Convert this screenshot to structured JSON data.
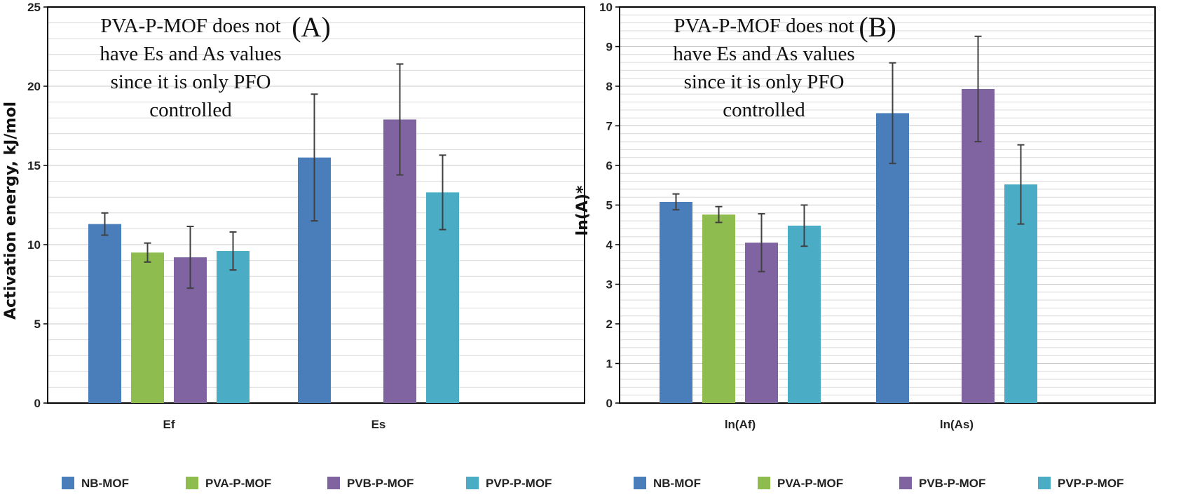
{
  "colors": {
    "NB-MOF": "#4a7ebb",
    "PVA-P-MOF": "#8fbc4f",
    "PVB-P-MOF": "#8064a2",
    "PVP-P-MOF": "#4bacc6",
    "errorbar": "#404040",
    "grid": "#d9d9d9"
  },
  "chart_data": [
    {
      "type": "bar",
      "panel_label": "(A)",
      "ylabel": "Activation energy, kJ/mol",
      "ylim": [
        0,
        25
      ],
      "ymajor": 5,
      "yminor": 1,
      "grid": true,
      "categories": [
        "Ef",
        "Es"
      ],
      "series": [
        {
          "name": "NB-MOF",
          "values": [
            11.3,
            15.5
          ],
          "errors": [
            0.7,
            4.0
          ]
        },
        {
          "name": "PVA-P-MOF",
          "values": [
            9.5,
            null
          ],
          "errors": [
            0.6,
            null
          ]
        },
        {
          "name": "PVB-P-MOF",
          "values": [
            9.2,
            17.9
          ],
          "errors": [
            1.95,
            3.5
          ]
        },
        {
          "name": "PVP-P-MOF",
          "values": [
            9.6,
            13.3
          ],
          "errors": [
            1.2,
            2.35
          ]
        }
      ],
      "annotation": [
        "PVA-P-MOF does not",
        "have Es and As values",
        "since it is only PFO",
        "controlled"
      ],
      "legend_position": "bottom"
    },
    {
      "type": "bar",
      "panel_label": "(B)",
      "ylabel": "ln(A)*",
      "ylim": [
        0,
        10
      ],
      "ymajor": 1,
      "yminor": 0.2,
      "grid": true,
      "categories": [
        "ln(Af)",
        "ln(As)"
      ],
      "series": [
        {
          "name": "NB-MOF",
          "values": [
            5.08,
            7.32
          ],
          "errors": [
            0.2,
            1.27
          ]
        },
        {
          "name": "PVA-P-MOF",
          "values": [
            4.76,
            null
          ],
          "errors": [
            0.2,
            null
          ]
        },
        {
          "name": "PVB-P-MOF",
          "values": [
            4.05,
            7.93
          ],
          "errors": [
            0.73,
            1.33
          ]
        },
        {
          "name": "PVP-P-MOF",
          "values": [
            4.48,
            5.52
          ],
          "errors": [
            0.52,
            1.0
          ]
        }
      ],
      "annotation": [
        "PVA-P-MOF does not",
        "have Es and As values",
        "since it is only PFO",
        "controlled"
      ],
      "legend_position": "bottom"
    }
  ]
}
